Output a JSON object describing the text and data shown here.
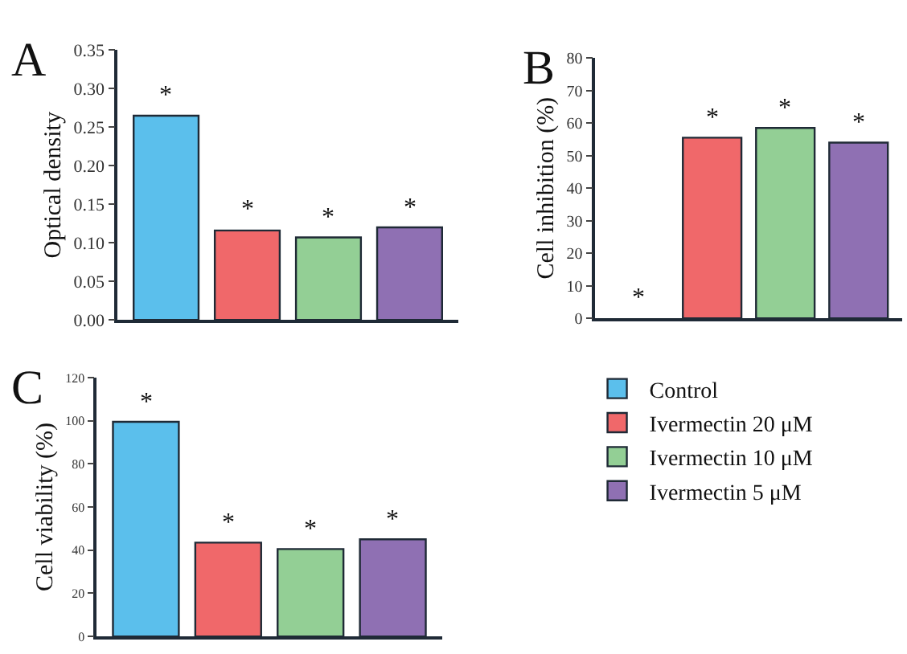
{
  "chart_data": [
    {
      "type": "bar",
      "title": "A",
      "ylabel": "Optical density",
      "categories": [
        null,
        null,
        null,
        null
      ],
      "values": [
        0.265,
        0.116,
        0.107,
        0.12
      ],
      "colors": [
        "#5bbfec",
        "#f0686a",
        "#93cf95",
        "#8f70b3"
      ],
      "ylim": [
        0,
        0.35
      ],
      "yticks": [
        {
          "value": 0,
          "label": "0.00"
        },
        0.05,
        {
          "value": 0.1,
          "label": "0.10"
        },
        0.15,
        {
          "value": 0.2,
          "label": "0.20"
        },
        0.25,
        {
          "value": 0.3,
          "label": "0.30"
        },
        0.35
      ],
      "tick_labels": "y",
      "annotations": [
        {
          "text": "*",
          "y": 0.265
        },
        {
          "text": "*",
          "y": 0.116
        },
        {
          "text": "*",
          "y": 0.107
        },
        {
          "text": "*",
          "y": 0.12
        }
      ]
    },
    {
      "type": "bar",
      "title": "B",
      "ylabel": "Cell inhibition (%)",
      "categories": [
        null,
        null,
        null,
        null
      ],
      "values": [
        0,
        55.5,
        58.5,
        54
      ],
      "colors": [
        "#5bbfec",
        "#f0686a",
        "#93cf95",
        "#8f70b3"
      ],
      "ylim": [
        0,
        80
      ],
      "yticks": [
        0,
        10,
        20,
        30,
        40,
        50,
        60,
        70,
        80
      ],
      "tick_labels": "y",
      "annotations": [
        {
          "text": "*",
          "y": 0
        },
        {
          "text": "*",
          "y": 55.5
        },
        {
          "text": "*",
          "y": 58.5
        },
        {
          "text": "*",
          "y": 54
        }
      ]
    },
    {
      "type": "bar",
      "title": "C",
      "ylabel": "Cell viability (%)",
      "categories": [
        null,
        null,
        null,
        null
      ],
      "series": [
        {
          "name": "Control",
          "color": "#5bbfec",
          "values": [
            99.5,
            null,
            null,
            null
          ]
        },
        {
          "name": "Ivermectin 20 μM",
          "color": "#f0686a",
          "values": [
            null,
            43.5,
            null,
            null
          ]
        },
        {
          "name": "Ivermectin 10 μM",
          "color": "#93cf95",
          "values": [
            null,
            null,
            40.5,
            null
          ]
        },
        {
          "name": "Ivermectin 5 μM",
          "color": "#8f70b3",
          "values": [
            null,
            null,
            null,
            45
          ]
        }
      ],
      "ylim": [
        0,
        120
      ],
      "yticks": [
        0,
        20,
        40,
        60,
        80,
        100,
        120
      ],
      "tick_labels": "y",
      "legend": "right",
      "annotations": [
        {
          "text": "*",
          "y": 99.5
        },
        {
          "text": "*",
          "y": 43.5
        },
        {
          "text": "*",
          "y": 40.5
        },
        {
          "text": "*",
          "y": 45
        }
      ]
    }
  ]
}
